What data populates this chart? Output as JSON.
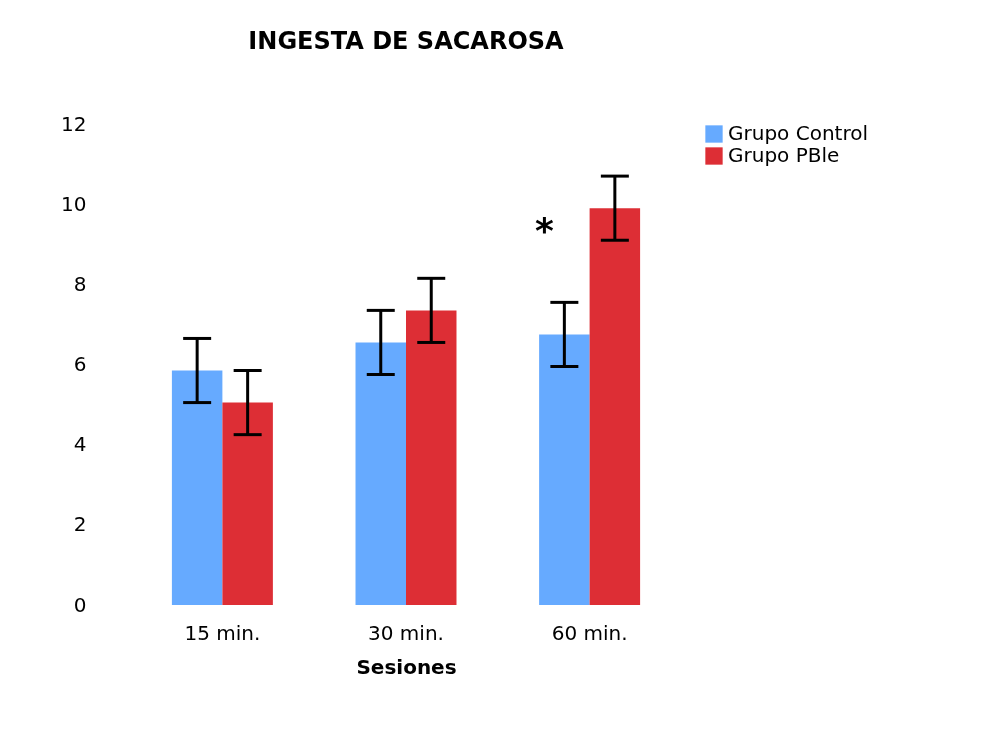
{
  "chart_data": {
    "type": "bar",
    "title": "INGESTA DE SACAROSA",
    "xlabel": "Sesiones",
    "categories": [
      "15 min.",
      "30 min.",
      "60 min."
    ],
    "series": [
      {
        "name": "Grupo Control",
        "color": "#66aaff",
        "values": [
          5.85,
          6.55,
          6.75
        ],
        "errors": [
          0.8,
          0.8,
          0.8
        ]
      },
      {
        "name": "Grupo PBle",
        "color": "#dd2e35",
        "values": [
          5.05,
          7.35,
          9.9
        ],
        "errors": [
          0.8,
          0.8,
          0.8
        ]
      }
    ],
    "ylim": [
      0,
      12
    ],
    "yticks": [
      0,
      2,
      4,
      6,
      8,
      10,
      12
    ],
    "grid": false,
    "legend": "right",
    "annotations": [
      {
        "text": "*",
        "x": "60 min.",
        "y": 9.3
      }
    ]
  }
}
